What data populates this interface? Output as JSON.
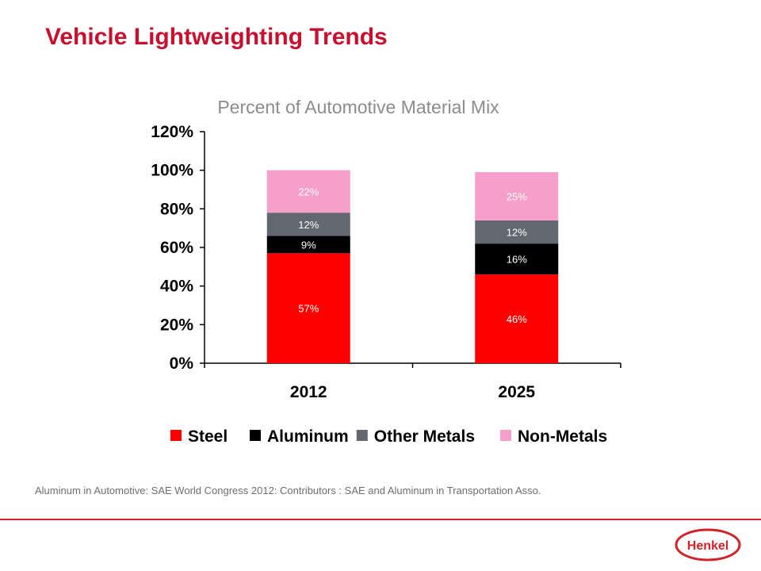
{
  "page": {
    "title": "Vehicle Lightweighting Trends"
  },
  "chart_data": {
    "type": "bar",
    "stacked": true,
    "title": "Percent of Automotive Material Mix",
    "categories": [
      "2012",
      "2025"
    ],
    "series": [
      {
        "name": "Steel",
        "color": "#ff0000",
        "values": [
          57,
          46
        ],
        "labels": [
          "57%",
          "46%"
        ]
      },
      {
        "name": "Aluminum",
        "color": "#000000",
        "values": [
          9,
          16
        ],
        "labels": [
          "9%",
          "16%"
        ]
      },
      {
        "name": "Other Metals",
        "color": "#636870",
        "values": [
          12,
          12
        ],
        "labels": [
          "12%",
          "12%"
        ]
      },
      {
        "name": "Non-Metals",
        "color": "#f79fcb",
        "values": [
          22,
          25
        ],
        "labels": [
          "22%",
          "25%"
        ]
      }
    ],
    "ylim": [
      0,
      120
    ],
    "yticks": [
      "0%",
      "20%",
      "40%",
      "60%",
      "80%",
      "100%",
      "120%"
    ],
    "xlabel": "",
    "ylabel": "",
    "legend": "bottom",
    "grid": false
  },
  "source": "Aluminum in Automotive: SAE World Congress 2012: Contributors : SAE and Aluminum in Transportation Asso.",
  "logo": {
    "text": "Henkel",
    "color": "#d2232a"
  }
}
